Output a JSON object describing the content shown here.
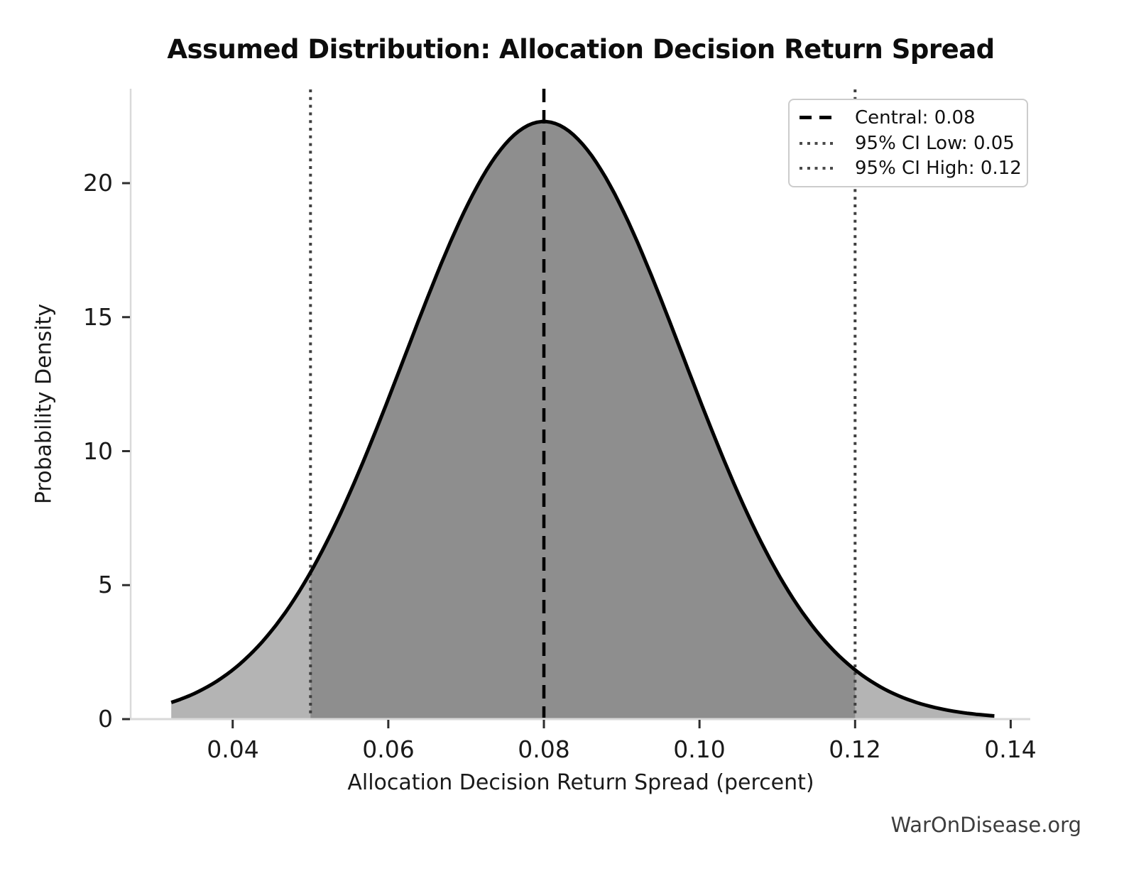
{
  "page": {
    "background": "#ffffff",
    "watermark": "WarOnDisease.org"
  },
  "chart_data": {
    "type": "area",
    "title": "Assumed Distribution: Allocation Decision Return Spread",
    "xlabel": "Allocation Decision Return Spread (percent)",
    "ylabel": "Probability Density",
    "grid": false,
    "legend_position": "upper right",
    "xlim": [
      0.0267,
      0.1425
    ],
    "ylim": [
      0,
      23.4
    ],
    "x_ticks": [
      "0.04",
      "0.06",
      "0.08",
      "0.10",
      "0.12",
      "0.14"
    ],
    "x_tick_values": [
      0.04,
      0.06,
      0.08,
      0.1,
      0.12,
      0.14
    ],
    "y_ticks": [
      "0",
      "5",
      "10",
      "15",
      "20"
    ],
    "y_tick_values": [
      0,
      5,
      10,
      15,
      20
    ],
    "distribution": {
      "family": "normal",
      "mean": 0.08,
      "sigma": 0.0179,
      "peak_density": 22.3,
      "x_start": 0.0321,
      "x_end": 0.1379
    },
    "markers": {
      "central": 0.08,
      "ci_low": 0.05,
      "ci_high": 0.12
    },
    "legend": [
      {
        "label": "Central: 0.08",
        "style": "dashed",
        "color": "#000000"
      },
      {
        "label": "95% CI Low: 0.05",
        "style": "dotted",
        "color": "#4a4a4a"
      },
      {
        "label": "95% CI High: 0.12",
        "style": "dotted",
        "color": "#4a4a4a"
      }
    ],
    "curve_points": {
      "x": [
        0.032,
        0.04,
        0.048,
        0.056,
        0.064,
        0.072,
        0.08,
        0.088,
        0.096,
        0.104,
        0.112,
        0.12,
        0.128,
        0.138
      ],
      "density": [
        0.61,
        1.83,
        4.5,
        9.07,
        14.95,
        20.18,
        22.3,
        20.18,
        14.95,
        9.07,
        4.5,
        1.83,
        0.61,
        0.12
      ]
    },
    "colors": {
      "curve": "#000000",
      "fill_tail": "#b4b4b4",
      "fill_ci": "#8e8e8e",
      "central_line": "#000000",
      "ci_line": "#3f3f3f",
      "spine": "#d9d9d9",
      "tick": "#2e2e2e",
      "text": "#1a1a1a",
      "watermark": "#3d3d3d",
      "legend_border": "#cccccc",
      "legend_bg": "#ffffff"
    }
  }
}
